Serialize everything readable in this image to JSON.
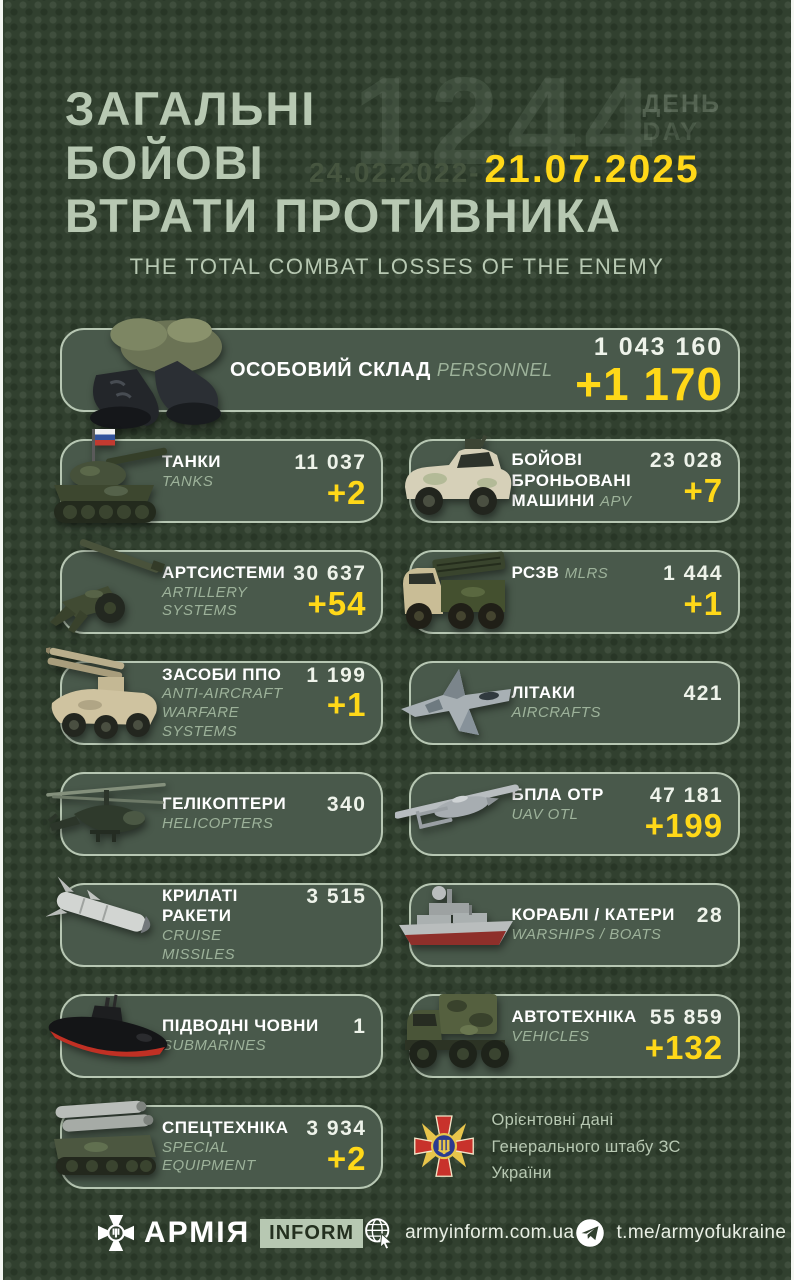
{
  "header": {
    "title_line1": "ЗАГАЛЬНІ",
    "title_line2": "БОЙОВІ",
    "title_line3": "ВТРАТИ ПРОТИВНИКА",
    "day_number": "1244",
    "day_label_ua": "ДЕНЬ",
    "day_label_en": "DAY",
    "date_start": "24.02.2022-",
    "date_end": "21.07.2025",
    "subtitle": "THE TOTAL COMBAT LOSSES OF THE ENEMY"
  },
  "cards": [
    {
      "id": "personnel",
      "wide": true,
      "icon": "fallen-soldier-icon",
      "name_ua": "ОСОБОВИЙ СКЛАД",
      "name_en": "PERSONNEL",
      "en_inline": true,
      "total": "1 043 160",
      "delta": "+1 170"
    },
    {
      "id": "tanks",
      "icon": "tank-icon",
      "name_ua": "ТАНКИ",
      "name_en": "TANKS",
      "en_inline": false,
      "total": "11 037",
      "delta": "+2"
    },
    {
      "id": "apv",
      "icon": "apv-icon",
      "name_ua": "БОЙОВІ БРОНЬОВАНІ МАШИНИ",
      "name_en": "APV",
      "en_inline": true,
      "total": "23 028",
      "delta": "+7"
    },
    {
      "id": "artillery-systems",
      "icon": "artillery-icon",
      "name_ua": "АРТСИСТЕМИ",
      "name_en": "ARTILLERY SYSTEMS",
      "en_inline": false,
      "total": "30 637",
      "delta": "+54"
    },
    {
      "id": "mlrs",
      "icon": "mlrs-icon",
      "name_ua": "РСЗВ",
      "name_en": "MLRS",
      "en_inline": true,
      "total": "1 444",
      "delta": "+1"
    },
    {
      "id": "anti-aircraft",
      "icon": "aa-icon",
      "name_ua": "ЗАСОБИ ППО",
      "name_en": "ANTI-AIRCRAFT WARFARE SYSTEMS",
      "en_inline": false,
      "total": "1 199",
      "delta": "+1"
    },
    {
      "id": "aircrafts",
      "icon": "jet-icon",
      "name_ua": "ЛІТАКИ",
      "name_en": "AIRCRAFTS",
      "en_inline": false,
      "total": "421",
      "delta": ""
    },
    {
      "id": "helicopters",
      "icon": "helicopter-icon",
      "name_ua": "ГЕЛІКОПТЕРИ",
      "name_en": "HELICOPTERS",
      "en_inline": false,
      "total": "340",
      "delta": ""
    },
    {
      "id": "uav-otl",
      "icon": "uav-icon",
      "name_ua": "БПЛА ОТР",
      "name_en": "UAV OTL",
      "en_inline": false,
      "total": "47 181",
      "delta": "+199"
    },
    {
      "id": "cruise-missiles",
      "icon": "missile-icon",
      "name_ua": "КРИЛАТІ РАКЕТИ",
      "name_en": "CRUISE MISSILES",
      "en_inline": false,
      "total": "3 515",
      "delta": ""
    },
    {
      "id": "warships-boats",
      "icon": "ship-icon",
      "name_ua": "КОРАБЛІ / КАТЕРИ",
      "name_en": "WARSHIPS / BOATS",
      "en_inline": false,
      "total": "28",
      "delta": ""
    },
    {
      "id": "submarines",
      "icon": "submarine-icon",
      "name_ua": "ПІДВОДНІ ЧОВНИ",
      "name_en": "SUBMARINES",
      "en_inline": false,
      "total": "1",
      "delta": ""
    },
    {
      "id": "vehicles",
      "icon": "truck-icon",
      "name_ua": "АВТОТЕХНІКА",
      "name_en": "VEHICLES",
      "en_inline": false,
      "total": "55 859",
      "delta": "+132"
    },
    {
      "id": "special-equipment",
      "icon": "special-equipment-icon",
      "name_ua": "СПЕЦТЕХНІКА",
      "name_en": "SPECIAL EQUIPMENT",
      "en_inline": false,
      "total": "3 934",
      "delta": "+2"
    }
  ],
  "note": {
    "icon": "general-staff-emblem-icon",
    "line1": "Орієнтовні дані",
    "line2": "Генерального штабу ЗС України"
  },
  "footer": {
    "brand_name": "АРМІЯ",
    "brand_badge": "INFORM",
    "website": "armyinform.com.ua",
    "telegram": "t.me/armyofukraine"
  },
  "colors": {
    "background": "#31402f",
    "card_fill": "#49594b",
    "card_border": "#b7c7b3",
    "title_text": "#b7c8b2",
    "accent_yellow": "#ffd818",
    "white_text": "#ffffff"
  }
}
